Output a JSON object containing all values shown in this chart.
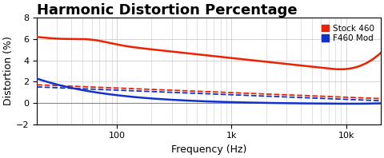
{
  "title": "Harmonic Distortion Percentage",
  "xlabel": "Frequency (Hz)",
  "ylabel": "Distortion (%)",
  "ylim": [
    -2,
    8
  ],
  "yticks": [
    -2,
    0,
    2,
    4,
    6,
    8
  ],
  "xlim": [
    20,
    20000
  ],
  "background_color": "#ffffff",
  "grid_color": "#cccccc",
  "stock_color": "#ee2200",
  "mod_color": "#1133cc",
  "legend_labels": [
    "Stock 460",
    "F460 Mod"
  ],
  "title_fontsize": 13,
  "axis_fontsize": 9,
  "tick_fontsize": 8
}
